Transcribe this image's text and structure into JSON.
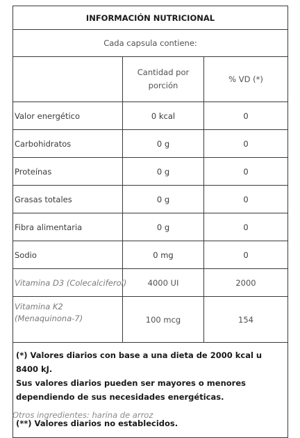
{
  "table": {
    "title": "INFORMACIÓN NUTRICIONAL",
    "subtitle": "Cada capsula contiene:",
    "headers": {
      "empty": "",
      "cantidad": "Cantidad por porción",
      "vd": "% VD (*)"
    },
    "rows": [
      {
        "label": "Valor energético",
        "cantidad": "0 kcal",
        "vd": "0"
      },
      {
        "label": "Carbohidratos",
        "cantidad": "0 g",
        "vd": "0"
      },
      {
        "label": "Proteínas",
        "cantidad": "0 g",
        "vd": "0"
      },
      {
        "label": "Grasas totales",
        "cantidad": "0 g",
        "vd": "0"
      },
      {
        "label": "Fibra alimentaria",
        "cantidad": "0 g",
        "vd": "0"
      },
      {
        "label": "Sodio",
        "cantidad": "0 mg",
        "vd": "0"
      },
      {
        "label": "Vitamina D3 (Colecalciferol)",
        "cantidad": "4000 UI",
        "vd": "2000"
      },
      {
        "label_line1": "Vitamina K2",
        "label_line2": "(Menaquinona-7)",
        "cantidad": "100 mcg",
        "vd": "154"
      }
    ],
    "notes": {
      "note1_line1": "(*) Valores diarios con base a una dieta de 2000 kcal u 8400 kJ.",
      "note1_line2": "Sus valores diarios pueden ser mayores o menores",
      "note1_line3": "dependiendo de sus necesidades energéticas.",
      "note2": "(**) Valores diarios no establecidos."
    }
  },
  "footer": {
    "other_ingredients": "Otros ingredientes: harina de arroz"
  }
}
